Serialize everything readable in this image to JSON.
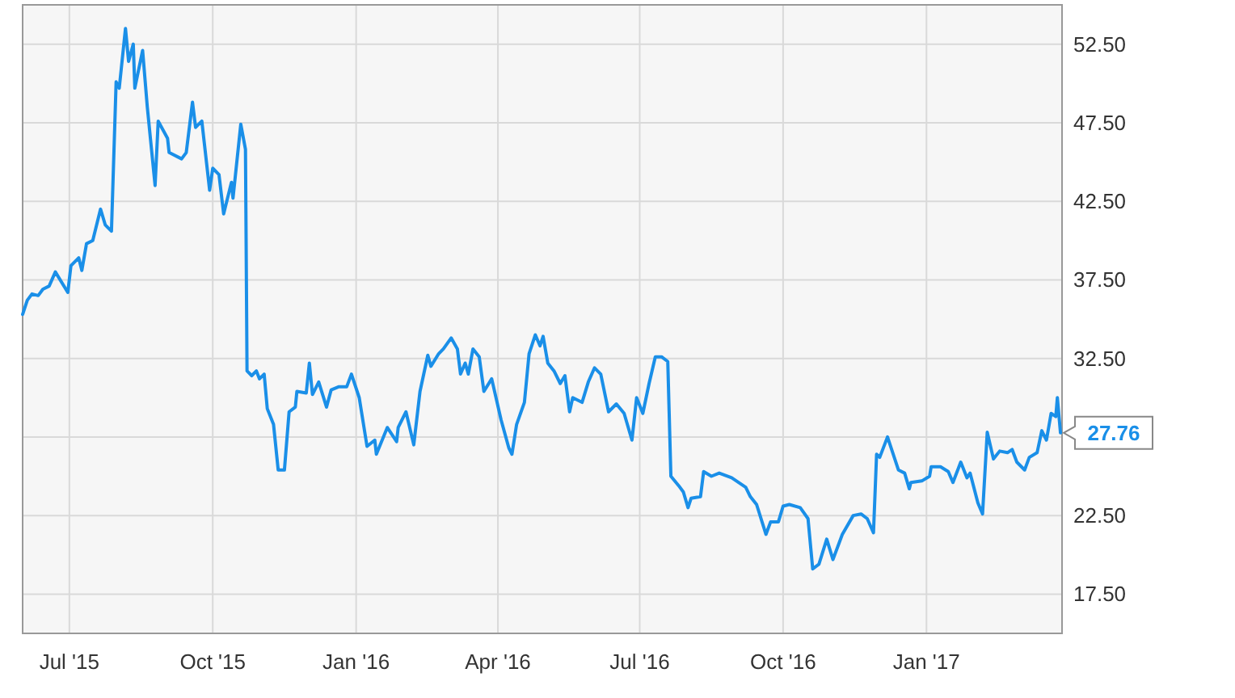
{
  "chart_data": {
    "type": "line",
    "x": [
      "2015-06-01",
      "2015-06-04",
      "2015-06-07",
      "2015-06-11",
      "2015-06-14",
      "2015-06-18",
      "2015-06-22",
      "2015-06-30",
      "2015-07-02",
      "2015-07-07",
      "2015-07-09",
      "2015-07-12",
      "2015-07-16",
      "2015-07-21",
      "2015-07-24",
      "2015-07-28",
      "2015-07-31",
      "2015-08-02",
      "2015-08-06",
      "2015-08-08",
      "2015-08-11",
      "2015-08-12",
      "2015-08-17",
      "2015-08-20",
      "2015-08-25",
      "2015-08-27",
      "2015-09-02",
      "2015-09-03",
      "2015-09-11",
      "2015-09-14",
      "2015-09-18",
      "2015-09-20",
      "2015-09-24",
      "2015-09-29",
      "2015-10-01",
      "2015-10-05",
      "2015-10-08",
      "2015-10-13",
      "2015-10-14",
      "2015-10-19",
      "2015-10-22",
      "2015-10-23",
      "2015-10-26",
      "2015-10-29",
      "2015-10-31",
      "2015-11-03",
      "2015-11-05",
      "2015-11-09",
      "2015-11-12",
      "2015-11-16",
      "2015-11-19",
      "2015-11-23",
      "2015-11-24",
      "2015-11-30",
      "2015-12-02",
      "2015-12-04",
      "2015-12-08",
      "2015-12-13",
      "2015-12-16",
      "2015-12-21",
      "2015-12-26",
      "2015-12-29",
      "2016-01-03",
      "2016-01-08",
      "2016-01-13",
      "2016-01-14",
      "2016-01-21",
      "2016-01-27",
      "2016-01-28",
      "2016-02-02",
      "2016-02-07",
      "2016-02-11",
      "2016-02-16",
      "2016-02-18",
      "2016-02-23",
      "2016-02-26",
      "2016-03-02",
      "2016-03-06",
      "2016-03-08",
      "2016-03-11",
      "2016-03-13",
      "2016-03-16",
      "2016-03-20",
      "2016-03-23",
      "2016-03-28",
      "2016-04-03",
      "2016-04-08",
      "2016-04-10",
      "2016-04-13",
      "2016-04-18",
      "2016-04-21",
      "2016-04-25",
      "2016-04-28",
      "2016-04-30",
      "2016-05-03",
      "2016-05-07",
      "2016-05-11",
      "2016-05-14",
      "2016-05-17",
      "2016-05-19",
      "2016-05-25",
      "2016-05-29",
      "2016-06-02",
      "2016-06-06",
      "2016-06-11",
      "2016-06-16",
      "2016-06-21",
      "2016-06-26",
      "2016-06-29",
      "2016-07-03",
      "2016-07-07",
      "2016-07-11",
      "2016-07-15",
      "2016-07-19",
      "2016-07-21",
      "2016-07-26",
      "2016-07-29",
      "2016-08-01",
      "2016-08-03",
      "2016-08-09",
      "2016-08-11",
      "2016-08-16",
      "2016-08-21",
      "2016-08-29",
      "2016-09-07",
      "2016-09-10",
      "2016-09-14",
      "2016-09-20",
      "2016-09-23",
      "2016-09-28",
      "2016-10-01",
      "2016-10-05",
      "2016-10-12",
      "2016-10-17",
      "2016-10-20",
      "2016-10-24",
      "2016-10-29",
      "2016-11-02",
      "2016-11-08",
      "2016-11-15",
      "2016-11-20",
      "2016-11-24",
      "2016-11-28",
      "2016-11-30",
      "2016-12-02",
      "2016-12-07",
      "2016-12-14",
      "2016-12-18",
      "2016-12-21",
      "2016-12-22",
      "2016-12-29",
      "2017-01-03",
      "2017-01-04",
      "2017-01-10",
      "2017-01-15",
      "2017-01-18",
      "2017-01-23",
      "2017-01-27",
      "2017-01-29",
      "2017-02-03",
      "2017-02-06",
      "2017-02-09",
      "2017-02-13",
      "2017-02-17",
      "2017-02-22",
      "2017-02-25",
      "2017-02-28",
      "2017-03-05",
      "2017-03-08",
      "2017-03-13",
      "2017-03-16",
      "2017-03-19",
      "2017-03-22",
      "2017-03-25",
      "2017-03-26",
      "2017-03-28"
    ],
    "series": [
      {
        "color": "#1a8fe8",
        "values": [
          35.3,
          36.2,
          36.6,
          36.5,
          36.9,
          37.1,
          38.0,
          36.7,
          38.4,
          38.9,
          38.1,
          39.8,
          40.0,
          42.0,
          41.0,
          40.6,
          50.1,
          49.7,
          53.5,
          51.4,
          52.5,
          49.7,
          52.1,
          48.5,
          43.5,
          47.6,
          46.5,
          45.6,
          45.2,
          45.6,
          48.8,
          47.2,
          47.6,
          43.2,
          44.6,
          44.2,
          41.7,
          43.7,
          42.7,
          47.4,
          45.8,
          31.7,
          31.4,
          31.7,
          31.2,
          31.5,
          29.3,
          28.3,
          25.4,
          25.4,
          29.1,
          29.4,
          30.4,
          30.3,
          32.2,
          30.2,
          31.0,
          29.4,
          30.5,
          30.7,
          30.7,
          31.5,
          30.0,
          26.9,
          27.3,
          26.4,
          28.1,
          27.2,
          28.1,
          29.1,
          27.0,
          30.4,
          32.7,
          32.0,
          32.8,
          33.1,
          33.8,
          33.1,
          31.5,
          32.2,
          31.5,
          33.1,
          32.6,
          30.4,
          31.2,
          28.6,
          26.8,
          26.4,
          28.3,
          29.7,
          32.8,
          34.0,
          33.3,
          33.9,
          32.2,
          31.7,
          30.9,
          31.4,
          29.1,
          30.0,
          29.7,
          31.0,
          31.9,
          31.5,
          29.1,
          29.6,
          29.0,
          27.3,
          30.0,
          29.0,
          30.9,
          32.6,
          32.6,
          32.3,
          25.0,
          24.4,
          24.0,
          23.0,
          23.6,
          23.7,
          25.3,
          25.0,
          25.2,
          24.9,
          24.3,
          23.7,
          23.2,
          21.3,
          22.1,
          22.1,
          23.1,
          23.2,
          23.0,
          22.3,
          19.1,
          19.4,
          21.0,
          19.7,
          21.3,
          22.5,
          22.6,
          22.3,
          21.4,
          26.4,
          26.2,
          27.5,
          25.4,
          25.2,
          24.2,
          24.6,
          24.7,
          25.0,
          25.6,
          25.6,
          25.3,
          24.6,
          25.9,
          24.9,
          25.2,
          23.3,
          22.6,
          27.8,
          26.1,
          26.6,
          26.5,
          26.7,
          25.9,
          25.4,
          26.2,
          26.5,
          27.9,
          27.3,
          29.0,
          28.8,
          30.0,
          27.76
        ]
      }
    ],
    "xlim": [
      "2015-06-01",
      "2017-03-29"
    ],
    "xticks": [
      {
        "value": "2015-07-01",
        "label": "Jul '15"
      },
      {
        "value": "2015-10-01",
        "label": "Oct '15"
      },
      {
        "value": "2016-01-01",
        "label": "Jan '16"
      },
      {
        "value": "2016-04-01",
        "label": "Apr '16"
      },
      {
        "value": "2016-07-01",
        "label": "Jul '16"
      },
      {
        "value": "2016-10-01",
        "label": "Oct '16"
      },
      {
        "value": "2017-01-01",
        "label": "Jan '17"
      }
    ],
    "ylim": [
      15,
      55
    ],
    "yticks": [
      {
        "value": 17.5,
        "label": "17.50"
      },
      {
        "value": 22.5,
        "label": "22.50"
      },
      {
        "value": 27.5,
        "label": null
      },
      {
        "value": 32.5,
        "label": "32.50"
      },
      {
        "value": 37.5,
        "label": "37.50"
      },
      {
        "value": 42.5,
        "label": "42.50"
      },
      {
        "value": 47.5,
        "label": "47.50"
      },
      {
        "value": 52.5,
        "label": "52.50"
      }
    ],
    "grid": true,
    "annotations": [
      {
        "text": "27.76",
        "x": "2017-03-28",
        "y": 27.76
      }
    ]
  }
}
